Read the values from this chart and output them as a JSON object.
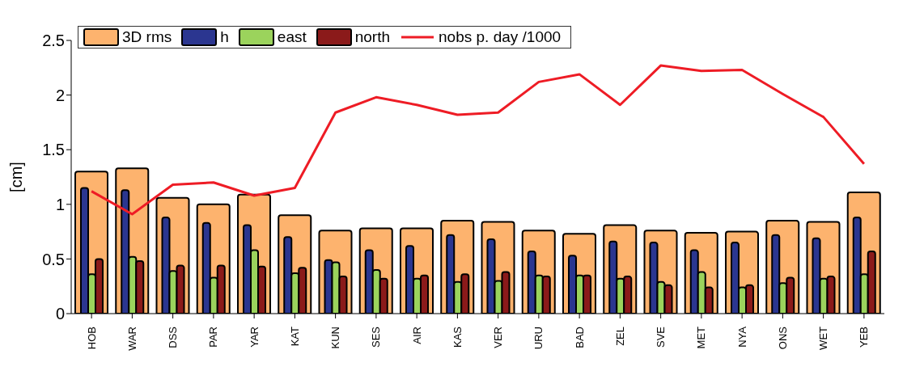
{
  "chart_data": {
    "type": "bar",
    "ylabel": "[cm]",
    "ylim": [
      0,
      2.5
    ],
    "yticks": [
      0,
      0.5,
      1,
      1.5,
      2,
      2.5
    ],
    "grid": false,
    "legend": "top",
    "marker": "none",
    "categories": [
      "HOB",
      "WAR",
      "DSS",
      "PAR",
      "YAR",
      "KAT",
      "KUN",
      "SES",
      "AIR",
      "KAS",
      "VER",
      "URU",
      "BAD",
      "ZEL",
      "SVE",
      "MET",
      "NYA",
      "ONS",
      "WET",
      "YEB"
    ],
    "series": [
      {
        "name": "3D rms",
        "color": "#fdb36e",
        "values": [
          1.3,
          1.33,
          1.06,
          1.0,
          1.09,
          0.9,
          0.76,
          0.78,
          0.78,
          0.85,
          0.84,
          0.76,
          0.73,
          0.81,
          0.76,
          0.74,
          0.75,
          0.85,
          0.84,
          1.11
        ]
      },
      {
        "name": "h",
        "color": "#2b3690",
        "values": [
          1.15,
          1.13,
          0.88,
          0.83,
          0.81,
          0.7,
          0.49,
          0.58,
          0.62,
          0.72,
          0.68,
          0.57,
          0.53,
          0.66,
          0.65,
          0.58,
          0.65,
          0.72,
          0.69,
          0.88
        ]
      },
      {
        "name": "east",
        "color": "#9bd35c",
        "values": [
          0.36,
          0.52,
          0.39,
          0.33,
          0.58,
          0.37,
          0.47,
          0.4,
          0.32,
          0.29,
          0.3,
          0.35,
          0.35,
          0.32,
          0.29,
          0.38,
          0.24,
          0.28,
          0.32,
          0.36
        ]
      },
      {
        "name": "north",
        "color": "#8b1a1a",
        "values": [
          0.5,
          0.48,
          0.44,
          0.44,
          0.43,
          0.42,
          0.34,
          0.32,
          0.35,
          0.36,
          0.38,
          0.34,
          0.35,
          0.34,
          0.26,
          0.24,
          0.26,
          0.33,
          0.34,
          0.57
        ]
      },
      {
        "name": "nobs p. day /1000",
        "type": "line",
        "color": "#ee1c25",
        "values": [
          1.12,
          0.91,
          1.18,
          1.2,
          1.08,
          1.15,
          1.84,
          1.98,
          1.91,
          1.82,
          1.84,
          2.12,
          2.19,
          1.91,
          2.27,
          2.22,
          2.23,
          2.01,
          1.8,
          1.37
        ]
      }
    ]
  }
}
